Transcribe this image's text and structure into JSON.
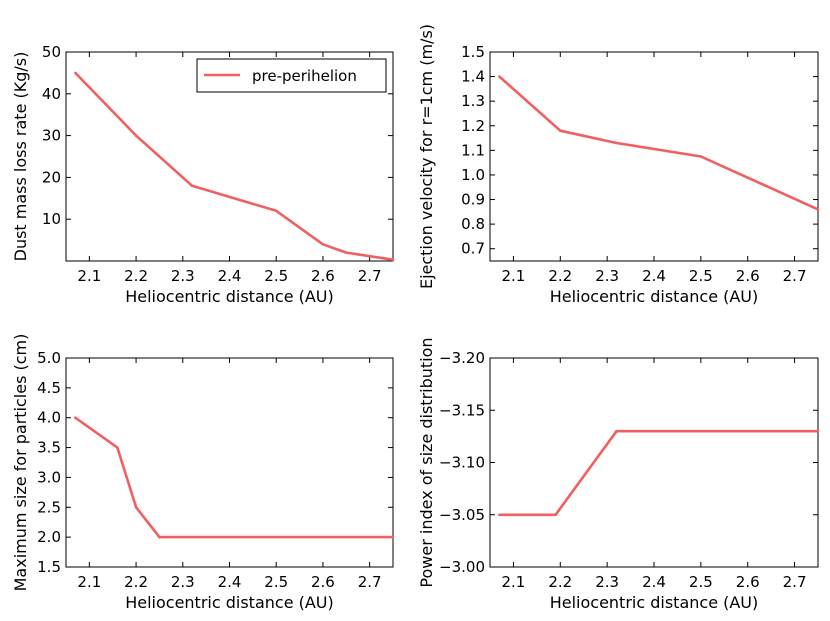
{
  "colors": {
    "series": "#f06060",
    "axis": "#000000",
    "background": "#ffffff"
  },
  "chart_data": [
    {
      "type": "line",
      "title": "",
      "xlabel": "Heliocentric distance (AU)",
      "ylabel": "Dust mass loss rate (Kg/s)",
      "xlim": [
        2.05,
        2.75
      ],
      "ylim": [
        0,
        50
      ],
      "xticks": [
        2.1,
        2.2,
        2.3,
        2.4,
        2.5,
        2.6,
        2.7
      ],
      "yticks": [
        10,
        20,
        30,
        40,
        50
      ],
      "x_tick_labels": [
        "2.1",
        "2.2",
        "2.3",
        "2.4",
        "2.5",
        "2.6",
        "2.7"
      ],
      "y_tick_labels": [
        "10",
        "20",
        "30",
        "40",
        "50"
      ],
      "legend": {
        "entries": [
          "pre-perihelion"
        ],
        "placement": "top-right"
      },
      "series": [
        {
          "name": "pre-perihelion",
          "x": [
            2.07,
            2.2,
            2.32,
            2.5,
            2.6,
            2.65,
            2.75
          ],
          "y": [
            45,
            30,
            18,
            12,
            4,
            2,
            0.3
          ]
        }
      ]
    },
    {
      "type": "line",
      "title": "",
      "xlabel": "Heliocentric distance (AU)",
      "ylabel": "Ejection velocity for r=1cm (m/s)",
      "xlim": [
        2.05,
        2.75
      ],
      "ylim": [
        0.65,
        1.5
      ],
      "xticks": [
        2.1,
        2.2,
        2.3,
        2.4,
        2.5,
        2.6,
        2.7
      ],
      "yticks": [
        0.7,
        0.8,
        0.9,
        1.0,
        1.1,
        1.2,
        1.3,
        1.4,
        1.5
      ],
      "x_tick_labels": [
        "2.1",
        "2.2",
        "2.3",
        "2.4",
        "2.5",
        "2.6",
        "2.7"
      ],
      "y_tick_labels": [
        "0.7",
        "0.8",
        "0.9",
        "1.0",
        "1.1",
        "1.2",
        "1.3",
        "1.4",
        "1.5"
      ],
      "series": [
        {
          "name": "pre-perihelion",
          "x": [
            2.07,
            2.2,
            2.32,
            2.5,
            2.75
          ],
          "y": [
            1.4,
            1.18,
            1.13,
            1.075,
            0.86
          ]
        }
      ]
    },
    {
      "type": "line",
      "title": "",
      "xlabel": "Heliocentric distance (AU)",
      "ylabel": "Maximum size for particles (cm)",
      "xlim": [
        2.05,
        2.75
      ],
      "ylim": [
        1.5,
        5.0
      ],
      "xticks": [
        2.1,
        2.2,
        2.3,
        2.4,
        2.5,
        2.6,
        2.7
      ],
      "yticks": [
        1.5,
        2.0,
        2.5,
        3.0,
        3.5,
        4.0,
        4.5,
        5.0
      ],
      "x_tick_labels": [
        "2.1",
        "2.2",
        "2.3",
        "2.4",
        "2.5",
        "2.6",
        "2.7"
      ],
      "y_tick_labels": [
        "1.5",
        "2.0",
        "2.5",
        "3.0",
        "3.5",
        "4.0",
        "4.5",
        "5.0"
      ],
      "series": [
        {
          "name": "pre-perihelion",
          "x": [
            2.07,
            2.16,
            2.2,
            2.25,
            2.75
          ],
          "y": [
            4.0,
            3.5,
            2.5,
            2.0,
            2.0
          ]
        }
      ]
    },
    {
      "type": "line",
      "title": "",
      "xlabel": "Heliocentric distance (AU)",
      "ylabel": "Power index of size distribution",
      "xlim": [
        2.05,
        2.75
      ],
      "ylim": [
        -3.0,
        -3.2
      ],
      "xticks": [
        2.1,
        2.2,
        2.3,
        2.4,
        2.5,
        2.6,
        2.7
      ],
      "yticks": [
        -3.0,
        -3.05,
        -3.1,
        -3.15,
        -3.2
      ],
      "x_tick_labels": [
        "2.1",
        "2.2",
        "2.3",
        "2.4",
        "2.5",
        "2.6",
        "2.7"
      ],
      "y_tick_labels": [
        "−3.00",
        "−3.05",
        "−3.10",
        "−3.15",
        "−3.20"
      ],
      "series": [
        {
          "name": "pre-perihelion",
          "x": [
            2.07,
            2.19,
            2.32,
            2.75
          ],
          "y": [
            -3.05,
            -3.05,
            -3.13,
            -3.13
          ]
        }
      ]
    }
  ]
}
